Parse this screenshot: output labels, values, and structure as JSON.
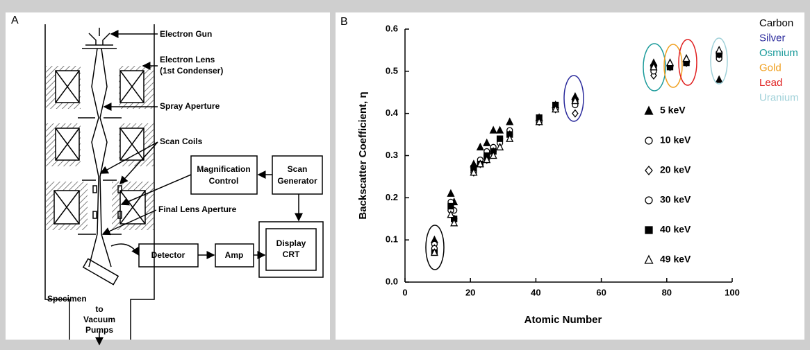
{
  "panel_a": {
    "label": "A",
    "labels": [
      "Electron Gun",
      "Electron Lens",
      "(1st Condenser)",
      "Spray Aperture",
      "Scan Coils",
      "Magnification",
      "Control",
      "Scan",
      "Generator",
      "Final Lens Aperture",
      "Detector",
      "Amp",
      "Display",
      "CRT",
      "Specimen",
      "to",
      "Vacuum",
      "Pumps"
    ]
  },
  "chart_data": {
    "type": "scatter",
    "panel_label": "B",
    "xlabel": "Atomic Number",
    "ylabel": "Backscatter Coefficient, η",
    "xlim": [
      0,
      100
    ],
    "xticks": [
      0,
      20,
      40,
      60,
      80,
      100
    ],
    "ylim": [
      0,
      0.6
    ],
    "yticks": [
      {
        "value": 0,
        "label": "0.0"
      },
      0.1,
      0.2,
      0.3,
      0.4,
      0.5,
      0.6
    ],
    "x": [
      9,
      14,
      15,
      21,
      23,
      25,
      27,
      29,
      32,
      41,
      46,
      52,
      76,
      81,
      86,
      96
    ],
    "series": [
      {
        "name": "5 keV",
        "color": "#000000",
        "marker": "triangle",
        "filled": true,
        "values": [
          0.1,
          0.21,
          0.19,
          0.28,
          0.32,
          0.33,
          0.36,
          0.36,
          0.38,
          0.39,
          0.42,
          0.44,
          0.52,
          0.52,
          0.53,
          0.48
        ]
      },
      {
        "name": "10 keV",
        "color": "#000000",
        "marker": "circle",
        "filled": false,
        "values": [
          0.09,
          0.19,
          0.17,
          0.27,
          0.29,
          0.31,
          0.32,
          0.34,
          0.36,
          0.38,
          0.41,
          0.43,
          0.5,
          0.51,
          0.52,
          0.53
        ]
      },
      {
        "name": "20 keV",
        "color": "#000000",
        "marker": "diamond",
        "filled": false,
        "values": [
          0.08,
          0.17,
          0.15,
          0.26,
          0.28,
          0.29,
          0.31,
          0.33,
          0.35,
          0.38,
          0.41,
          0.4,
          0.49,
          0.51,
          0.52,
          0.54
        ]
      },
      {
        "name": "30 keV",
        "color": "#000000",
        "marker": "circle",
        "filled": false,
        "values": [
          0.08,
          0.17,
          0.15,
          0.26,
          0.28,
          0.3,
          0.31,
          0.33,
          0.35,
          0.38,
          0.41,
          0.42,
          0.5,
          0.51,
          0.52,
          0.54
        ]
      },
      {
        "name": "40 keV",
        "color": "#000000",
        "marker": "square",
        "filled": true,
        "values": [
          0.07,
          0.18,
          0.15,
          0.27,
          0.28,
          0.3,
          0.31,
          0.34,
          0.35,
          0.39,
          0.42,
          0.43,
          0.51,
          0.51,
          0.52,
          0.54
        ]
      },
      {
        "name": "49 keV",
        "color": "#000000",
        "marker": "triangle",
        "filled": false,
        "values": [
          0.07,
          0.16,
          0.14,
          0.26,
          0.28,
          0.29,
          0.3,
          0.32,
          0.34,
          0.38,
          0.41,
          0.43,
          0.51,
          0.52,
          0.53,
          0.55
        ]
      }
    ],
    "annotations": [
      {
        "text": "Carbon",
        "color": "#000000"
      },
      {
        "text": "Silver",
        "color": "#2b2b9c"
      },
      {
        "text": "Osmium",
        "color": "#1a9a9a"
      },
      {
        "text": "Gold",
        "color": "#f0a020"
      },
      {
        "text": "Lead",
        "color": "#e02020"
      },
      {
        "text": "Uranium",
        "color": "#9fd0d8"
      }
    ]
  }
}
